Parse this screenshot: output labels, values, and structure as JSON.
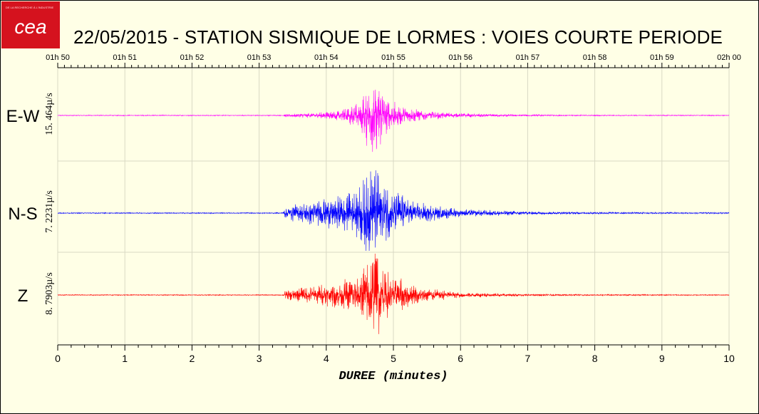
{
  "header": {
    "logo_text": "cea",
    "logo_tagline": "DE LA RECHERCHE À L'INDUSTRIE",
    "title": "22/05/2015  -  STATION SISMIQUE DE LORMES : VOIES COURTE PERIODE"
  },
  "colors": {
    "background": "#ffffe6",
    "logo": "#d5121e",
    "grid": "#d9d9c4",
    "E-W": "#ff00ff",
    "N-S": "#0000ff",
    "Z": "#ff0000"
  },
  "chart_data": {
    "type": "line",
    "title": "22/05/2015  -  STATION SISMIQUE DE LORMES : VOIES COURTE PERIODE",
    "xlabel": "DUREE (minutes)",
    "xlim": [
      0,
      10
    ],
    "x_ticks": [
      "0",
      "1",
      "2",
      "3",
      "4",
      "5",
      "6",
      "7",
      "8",
      "9",
      "10"
    ],
    "top_axis_ticks": [
      "01h 50",
      "01h 51",
      "01h 52",
      "01h 53",
      "01h 54",
      "01h 55",
      "01h 56",
      "01h 57",
      "01h 58",
      "01h 59",
      "02h 00"
    ],
    "grid": true,
    "series": [
      {
        "name": "E-W",
        "scale_label": "15. 464µ/s",
        "color": "#ff00ff",
        "envelope": {
          "minutes": [
            0,
            3.35,
            3.4,
            3.8,
            4.2,
            4.5,
            4.65,
            4.75,
            4.9,
            5.2,
            5.5,
            6.0,
            7.0,
            8.0,
            10.0
          ],
          "amplitude": [
            0.01,
            0.01,
            0.04,
            0.06,
            0.12,
            0.3,
            0.9,
            0.95,
            0.4,
            0.18,
            0.1,
            0.05,
            0.02,
            0.012,
            0.01
          ]
        }
      },
      {
        "name": "N-S",
        "scale_label": "7. 2231µ/s",
        "color": "#0000ff",
        "envelope": {
          "minutes": [
            0,
            3.35,
            3.4,
            3.8,
            4.2,
            4.5,
            4.65,
            4.75,
            4.9,
            5.2,
            5.5,
            6.0,
            7.0,
            8.0,
            10.0
          ],
          "amplitude": [
            0.01,
            0.01,
            0.15,
            0.25,
            0.35,
            0.55,
            0.95,
            0.9,
            0.6,
            0.3,
            0.18,
            0.08,
            0.035,
            0.02,
            0.012
          ]
        }
      },
      {
        "name": "Z",
        "scale_label": "8. 7903µ/s",
        "color": "#ff0000",
        "envelope": {
          "minutes": [
            0,
            3.35,
            3.4,
            3.8,
            4.2,
            4.5,
            4.65,
            4.75,
            4.9,
            5.2,
            5.5,
            6.0,
            7.0,
            8.0,
            10.0
          ],
          "amplitude": [
            0.01,
            0.01,
            0.12,
            0.2,
            0.3,
            0.5,
            0.95,
            0.95,
            0.55,
            0.28,
            0.15,
            0.06,
            0.025,
            0.015,
            0.01
          ]
        }
      }
    ]
  }
}
